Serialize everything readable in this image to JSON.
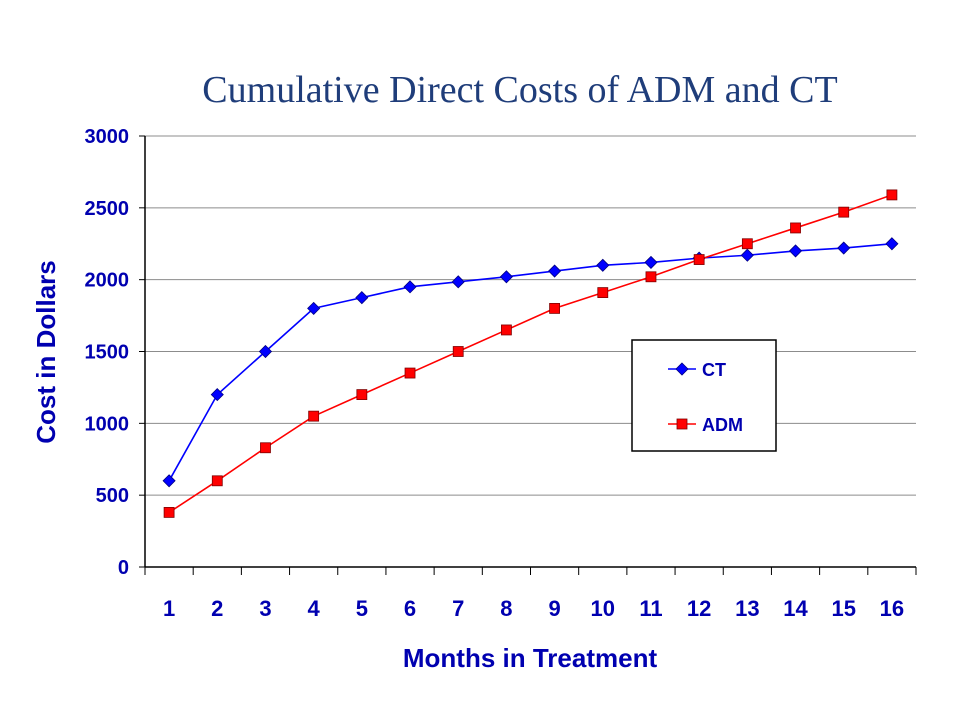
{
  "chart_data": {
    "type": "line",
    "title": "Cumulative Direct Costs of ADM and CT",
    "xlabel": "Months in Treatment",
    "ylabel": "Cost in Dollars",
    "categories": [
      "1",
      "2",
      "3",
      "4",
      "5",
      "6",
      "7",
      "8",
      "9",
      "10",
      "11",
      "12",
      "13",
      "14",
      "15",
      "16"
    ],
    "ylim": [
      0,
      3000
    ],
    "yticks": [
      0,
      500,
      1000,
      1500,
      2000,
      2500,
      3000
    ],
    "grid": true,
    "legend_position": "center-right",
    "series": [
      {
        "name": "CT",
        "color": "#0000ff",
        "marker": "diamond",
        "values": [
          600,
          1200,
          1500,
          1800,
          1875,
          1950,
          1985,
          2020,
          2060,
          2100,
          2120,
          2150,
          2170,
          2200,
          2220,
          2250
        ]
      },
      {
        "name": "ADM",
        "color": "#ff0000",
        "marker": "square",
        "values": [
          380,
          600,
          830,
          1050,
          1200,
          1350,
          1500,
          1650,
          1800,
          1910,
          2020,
          2140,
          2250,
          2360,
          2470,
          2590
        ]
      }
    ]
  }
}
